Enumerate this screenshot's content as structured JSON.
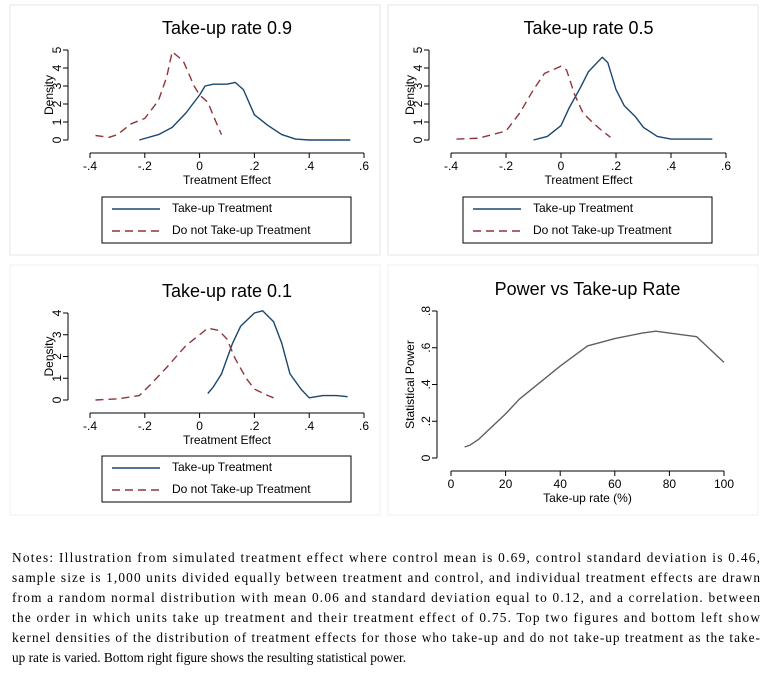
{
  "chart_data": [
    {
      "type": "line",
      "title": "Take-up rate 0.9",
      "xlabel": "Treatment Effect",
      "ylabel": "Density",
      "xlim": [
        -0.4,
        0.6
      ],
      "xticks": [
        {
          "value": -0.4,
          "label": "-.4"
        },
        {
          "value": -0.2,
          "label": "-.2"
        },
        0,
        {
          "value": 0.2,
          "label": ".2"
        },
        {
          "value": 0.4,
          "label": ".4"
        },
        {
          "value": 0.6,
          "label": ".6"
        }
      ],
      "ylim": [
        0,
        5
      ],
      "yticks": [
        0,
        1,
        2,
        3,
        4,
        5
      ],
      "series": [
        {
          "name": "Take-up Treatment",
          "color": "#1a476f",
          "line_style": "solid",
          "x": [
            -0.22,
            -0.15,
            -0.1,
            -0.05,
            0,
            0.02,
            0.05,
            0.1,
            0.13,
            0.16,
            0.2,
            0.25,
            0.3,
            0.35,
            0.4,
            0.55
          ],
          "values": [
            0,
            0.3,
            0.7,
            1.5,
            2.5,
            3.0,
            3.1,
            3.1,
            3.2,
            2.8,
            1.4,
            0.8,
            0.3,
            0.05,
            0,
            0
          ]
        },
        {
          "name": "Do not Take-up Treatment",
          "color": "#90353b",
          "line_style": "dashed",
          "x": [
            -0.38,
            -0.33,
            -0.3,
            -0.25,
            -0.2,
            -0.15,
            -0.12,
            -0.1,
            -0.06,
            -0.02,
            0,
            0.03,
            0.06,
            0.08
          ],
          "values": [
            0.25,
            0.15,
            0.3,
            0.9,
            1.2,
            2.2,
            3.5,
            4.9,
            4.4,
            3.0,
            2.5,
            2.1,
            1.0,
            0.3
          ]
        }
      ]
    },
    {
      "type": "line",
      "title": "Take-up rate 0.5",
      "xlabel": "Treatment Effect",
      "ylabel": "Density",
      "xlim": [
        -0.4,
        0.6
      ],
      "xticks": [
        {
          "value": -0.4,
          "label": "-.4"
        },
        {
          "value": -0.2,
          "label": "-.2"
        },
        0,
        {
          "value": 0.2,
          "label": ".2"
        },
        {
          "value": 0.4,
          "label": ".4"
        },
        {
          "value": 0.6,
          "label": ".6"
        }
      ],
      "ylim": [
        0,
        5
      ],
      "yticks": [
        0,
        1,
        2,
        3,
        4,
        5
      ],
      "series": [
        {
          "name": "Take-up Treatment",
          "color": "#1a476f",
          "line_style": "solid",
          "x": [
            -0.1,
            -0.05,
            0,
            0.03,
            0.07,
            0.1,
            0.15,
            0.17,
            0.2,
            0.23,
            0.27,
            0.3,
            0.35,
            0.4,
            0.55
          ],
          "values": [
            0,
            0.2,
            0.8,
            1.8,
            2.9,
            3.8,
            4.6,
            4.3,
            2.8,
            1.9,
            1.3,
            0.7,
            0.2,
            0.05,
            0.05
          ]
        },
        {
          "name": "Do not Take-up Treatment",
          "color": "#90353b",
          "line_style": "dashed",
          "x": [
            -0.38,
            -0.3,
            -0.2,
            -0.15,
            -0.1,
            -0.06,
            0,
            0.02,
            0.05,
            0.08,
            0.12,
            0.15,
            0.18
          ],
          "values": [
            0.05,
            0.1,
            0.5,
            1.5,
            2.8,
            3.7,
            4.1,
            3.9,
            2.5,
            1.5,
            0.9,
            0.5,
            0.15
          ]
        }
      ]
    },
    {
      "type": "line",
      "title": "Take-up rate 0.1",
      "xlabel": "Treatment Effect",
      "ylabel": "Density",
      "xlim": [
        -0.4,
        0.6
      ],
      "xticks": [
        {
          "value": -0.4,
          "label": "-.4"
        },
        {
          "value": -0.2,
          "label": "-.2"
        },
        0,
        {
          "value": 0.2,
          "label": ".2"
        },
        {
          "value": 0.4,
          "label": ".4"
        },
        {
          "value": 0.6,
          "label": ".6"
        }
      ],
      "ylim": [
        0,
        4
      ],
      "yticks": [
        0,
        1,
        2,
        3,
        4
      ],
      "series": [
        {
          "name": "Take-up Treatment",
          "color": "#1a476f",
          "line_style": "solid",
          "x": [
            0.03,
            0.05,
            0.08,
            0.12,
            0.15,
            0.2,
            0.23,
            0.27,
            0.3,
            0.33,
            0.37,
            0.4,
            0.45,
            0.5,
            0.54
          ],
          "values": [
            0.3,
            0.6,
            1.2,
            2.6,
            3.4,
            4.0,
            4.1,
            3.6,
            2.6,
            1.2,
            0.5,
            0.1,
            0.2,
            0.2,
            0.15
          ]
        },
        {
          "name": "Do not Take-up Treatment",
          "color": "#90353b",
          "line_style": "dashed",
          "x": [
            -0.38,
            -0.3,
            -0.22,
            -0.18,
            -0.12,
            -0.05,
            0,
            0.03,
            0.07,
            0.1,
            0.13,
            0.17,
            0.2,
            0.25,
            0.27
          ],
          "values": [
            0,
            0.05,
            0.2,
            0.7,
            1.5,
            2.5,
            3.0,
            3.3,
            3.2,
            2.8,
            1.9,
            1.0,
            0.5,
            0.2,
            0.1
          ]
        }
      ]
    },
    {
      "type": "line",
      "title": "Power vs Take-up Rate",
      "xlabel": "Take-up rate (%)",
      "ylabel": "Statistical Power",
      "xlim": [
        0,
        100
      ],
      "xticks": [
        0,
        20,
        40,
        60,
        80,
        100
      ],
      "ylim": [
        0,
        0.8
      ],
      "yticks": [
        0,
        {
          "value": 0.2,
          "label": ".2"
        },
        {
          "value": 0.4,
          "label": ".4"
        },
        {
          "value": 0.6,
          "label": ".6"
        },
        {
          "value": 0.8,
          "label": ".8"
        }
      ],
      "series": [
        {
          "color": "#606060",
          "line_style": "solid",
          "x": [
            5,
            7,
            10,
            20,
            25,
            30,
            40,
            50,
            60,
            70,
            75,
            80,
            90,
            100
          ],
          "values": [
            0.06,
            0.07,
            0.1,
            0.24,
            0.32,
            0.38,
            0.5,
            0.61,
            0.65,
            0.68,
            0.69,
            0.68,
            0.66,
            0.52
          ]
        }
      ]
    }
  ],
  "notes": [
    "Notes: Illustration from simulated treatment effect where control mean is 0.69, control standard deviation is 0.46,",
    "sample size is 1,000 units divided equally between treatment and control, and individual treatment effects are drawn",
    "from a random normal distribution with mean 0.06 and standard deviation equal to 0.12, and a correlation. between",
    "the order in which units take up treatment and their treatment effect of 0.75. Top two figures and bottom left show",
    "kernel densities of the distribution of treatment effects for those who take-up and do not take-up treatment as the take-",
    "up rate is varied. Bottom right figure shows the resulting statistical power."
  ]
}
